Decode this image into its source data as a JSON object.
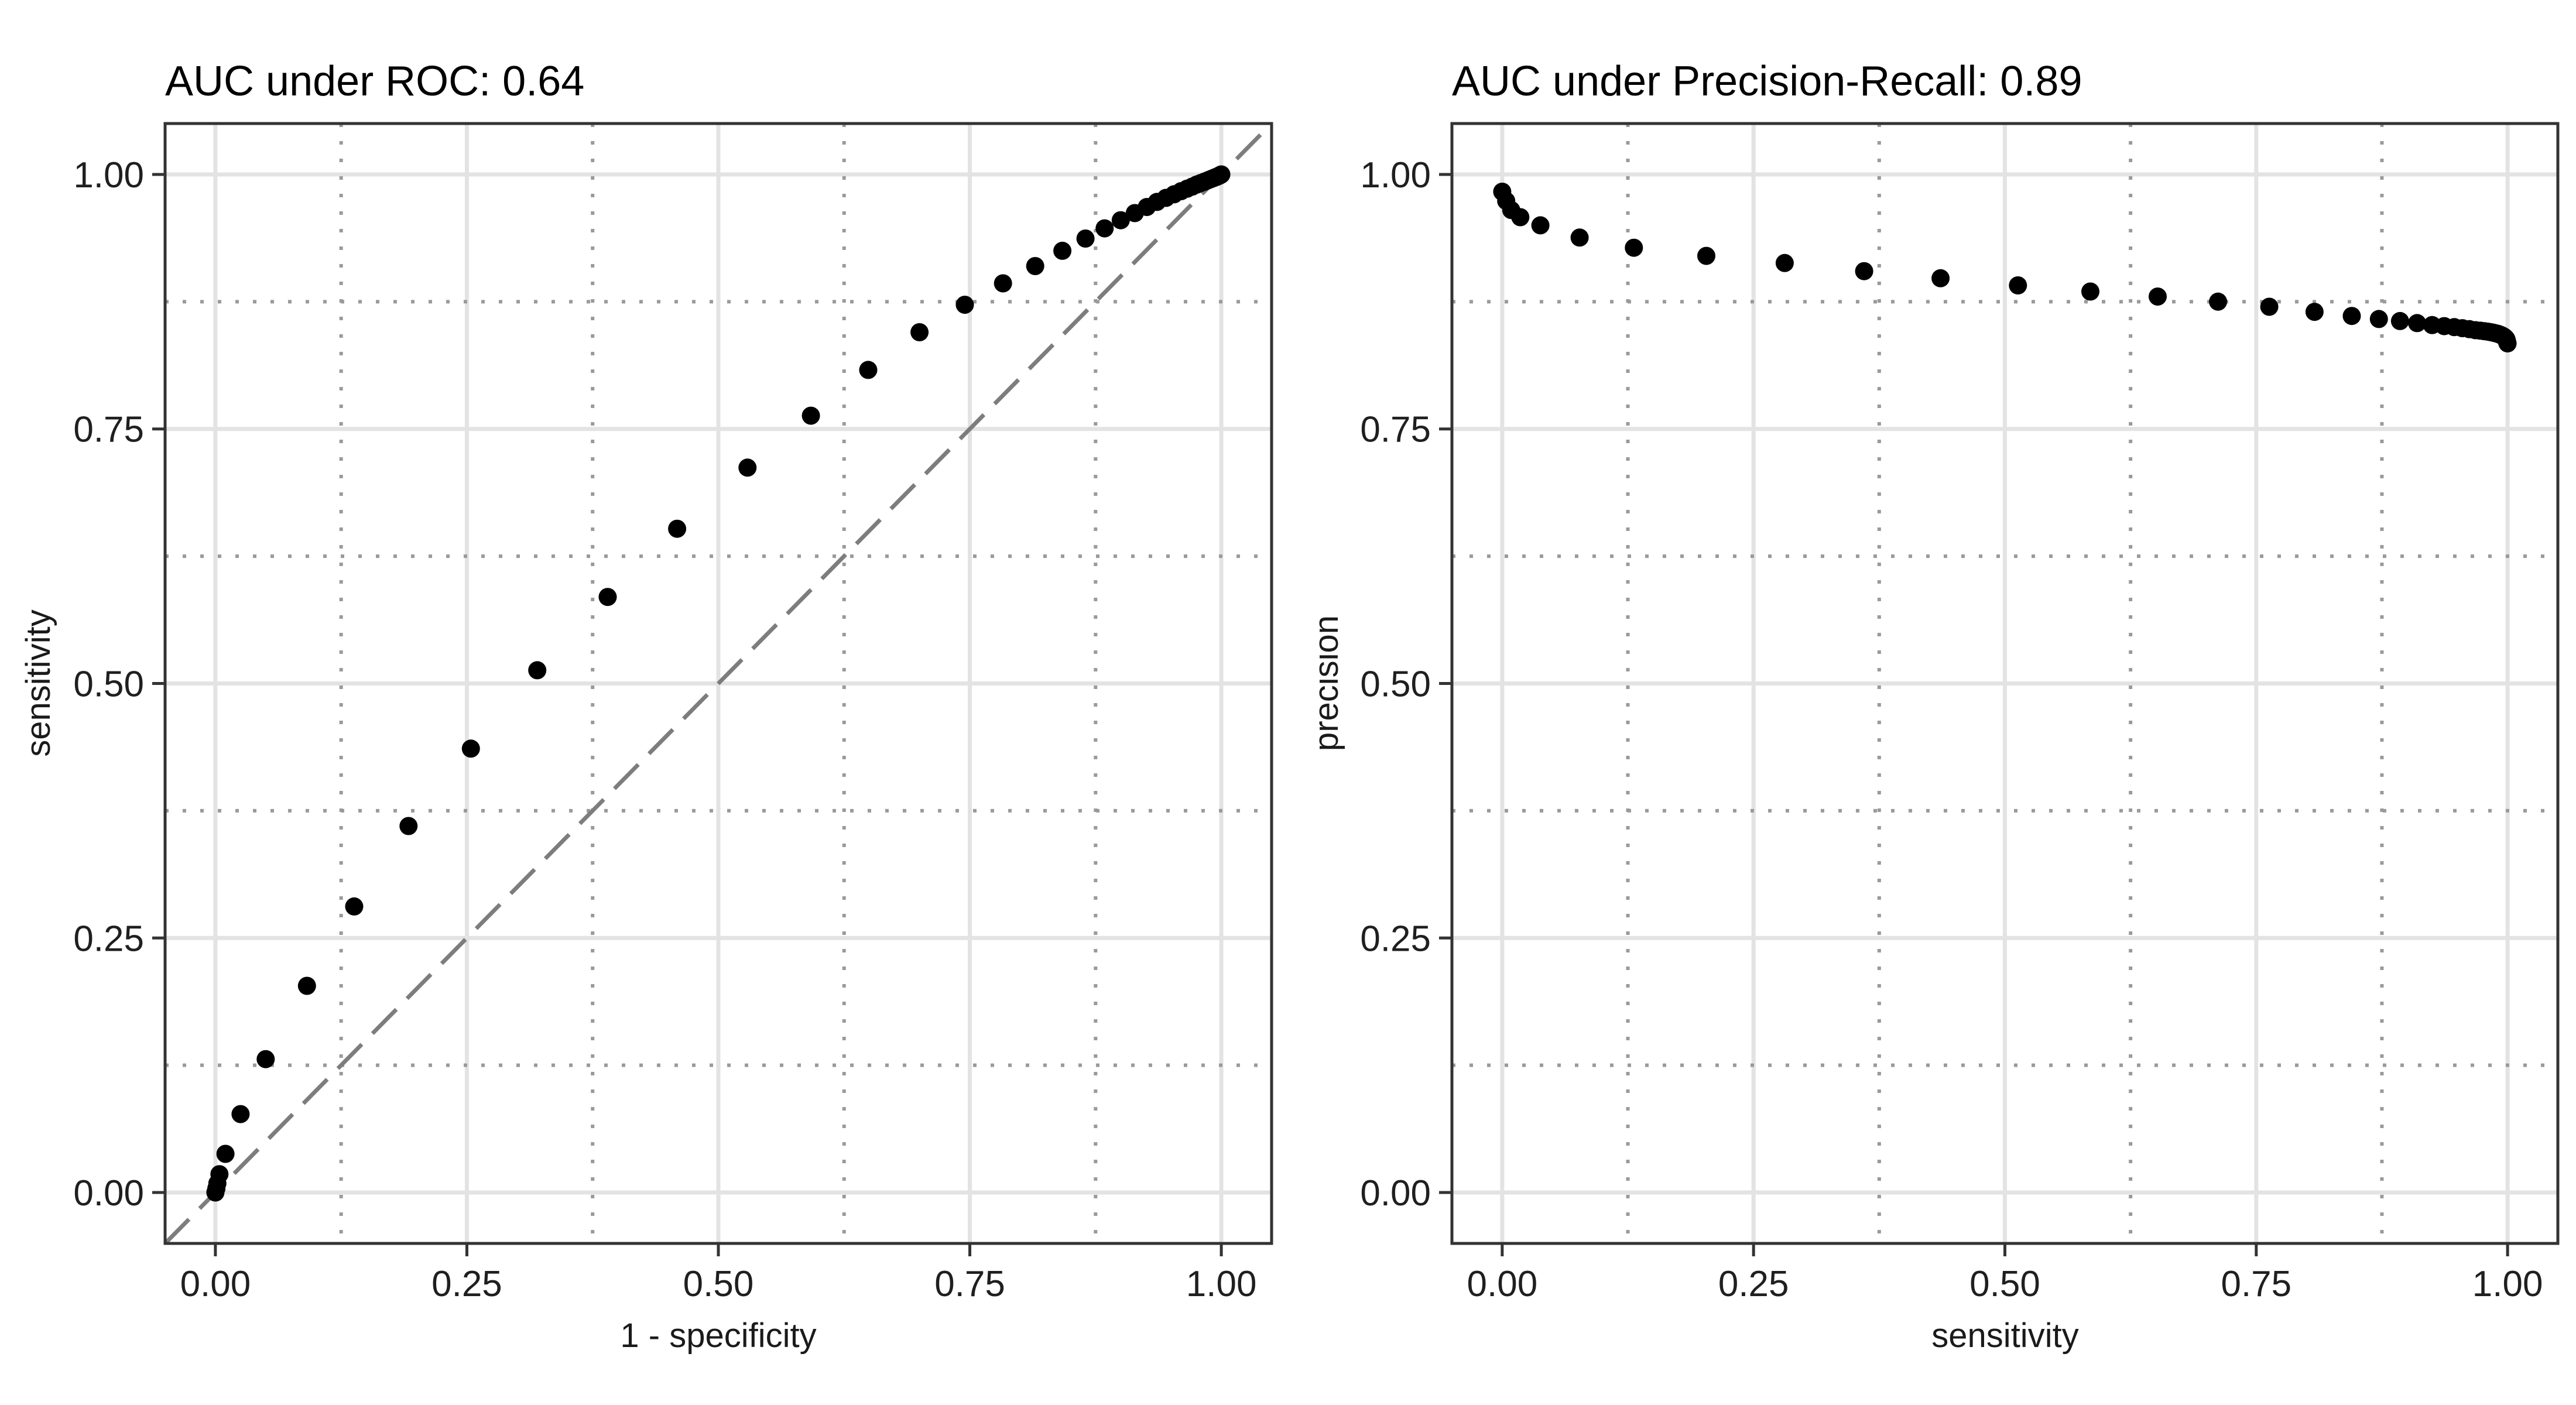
{
  "figure": {
    "background": "#ffffff",
    "panel_background": "#ffffff"
  },
  "style": {
    "major_grid_color": "#e3e3e3",
    "minor_grid_color": "#9a9a9a",
    "panel_border_color": "#333333",
    "tick_mark_color": "#333333",
    "point_color": "#000000",
    "reference_line_color": "#7d7d7d"
  },
  "chart_data": [
    {
      "type": "scatter",
      "id": "roc",
      "title": "AUC under ROC: 0.64",
      "xlabel": "1 - specificity",
      "ylabel": "sensitivity",
      "xlim": [
        0,
        1
      ],
      "ylim": [
        0,
        1
      ],
      "x_tick_values": [
        0,
        0.25,
        0.5,
        0.75,
        1.0
      ],
      "x_tick_labels": [
        "0.00",
        "0.25",
        "0.50",
        "0.75",
        "1.00"
      ],
      "y_tick_values": [
        0,
        0.25,
        0.5,
        0.75,
        1.0
      ],
      "y_tick_labels": [
        "0.00",
        "0.25",
        "0.50",
        "0.75",
        "1.00"
      ],
      "minor_tick_values": [
        0.125,
        0.375,
        0.625,
        0.875
      ],
      "grid": "major-solid, minor-dotted",
      "legend": "none",
      "reference_line": {
        "type": "diagonal",
        "from": [
          0,
          0
        ],
        "to": [
          1,
          1
        ],
        "style": "dashed"
      },
      "x": [
        0.0,
        0.001,
        0.002,
        0.004,
        0.01,
        0.025,
        0.05,
        0.091,
        0.138,
        0.192,
        0.254,
        0.32,
        0.39,
        0.459,
        0.529,
        0.592,
        0.649,
        0.7,
        0.745,
        0.783,
        0.815,
        0.842,
        0.865,
        0.884,
        0.9,
        0.914,
        0.926,
        0.936,
        0.945,
        0.953,
        0.96,
        0.966,
        0.971,
        0.9755,
        0.9795,
        0.983,
        0.986,
        0.9885,
        0.9905,
        0.9925,
        0.994,
        0.9955,
        0.9965,
        0.9975,
        0.998,
        0.9985,
        0.999,
        0.9995,
        1.0
      ],
      "y": [
        0.0,
        0.004,
        0.009,
        0.018,
        0.038,
        0.077,
        0.131,
        0.203,
        0.281,
        0.36,
        0.436,
        0.513,
        0.585,
        0.652,
        0.712,
        0.763,
        0.808,
        0.845,
        0.872,
        0.893,
        0.91,
        0.925,
        0.937,
        0.947,
        0.955,
        0.962,
        0.968,
        0.973,
        0.977,
        0.9805,
        0.9835,
        0.986,
        0.988,
        0.99,
        0.9915,
        0.9928,
        0.994,
        0.995,
        0.9958,
        0.9965,
        0.9972,
        0.9977,
        0.9982,
        0.9986,
        0.9989,
        0.9992,
        0.9994,
        0.9996,
        1.0
      ]
    },
    {
      "type": "scatter",
      "id": "precision-recall",
      "title": "AUC under Precision-Recall: 0.89",
      "xlabel": "sensitivity",
      "ylabel": "precision",
      "xlim": [
        0,
        1
      ],
      "ylim": [
        0,
        1
      ],
      "x_tick_values": [
        0,
        0.25,
        0.5,
        0.75,
        1.0
      ],
      "x_tick_labels": [
        "0.00",
        "0.25",
        "0.50",
        "0.75",
        "1.00"
      ],
      "y_tick_values": [
        0,
        0.25,
        0.5,
        0.75,
        1.0
      ],
      "y_tick_labels": [
        "0.00",
        "0.25",
        "0.50",
        "0.75",
        "1.00"
      ],
      "minor_tick_values": [
        0.125,
        0.375,
        0.625,
        0.875
      ],
      "grid": "major-solid, minor-dotted",
      "legend": "none",
      "reference_line": null,
      "x": [
        0.0,
        0.004,
        0.009,
        0.018,
        0.038,
        0.077,
        0.131,
        0.203,
        0.281,
        0.36,
        0.436,
        0.513,
        0.585,
        0.652,
        0.712,
        0.763,
        0.808,
        0.845,
        0.872,
        0.893,
        0.91,
        0.925,
        0.937,
        0.947,
        0.955,
        0.962,
        0.968,
        0.973,
        0.977,
        0.9805,
        0.9835,
        0.986,
        0.988,
        0.99,
        0.9915,
        0.9928,
        0.994,
        0.995,
        0.9958,
        0.9965,
        0.9972,
        0.9977,
        0.9982,
        0.9986,
        0.9989,
        0.9992,
        0.9994,
        0.9996,
        1.0
      ],
      "y": [
        0.983,
        0.974,
        0.965,
        0.958,
        0.95,
        0.938,
        0.928,
        0.92,
        0.913,
        0.905,
        0.898,
        0.891,
        0.885,
        0.88,
        0.875,
        0.87,
        0.865,
        0.861,
        0.858,
        0.856,
        0.854,
        0.852,
        0.851,
        0.85,
        0.849,
        0.848,
        0.847,
        0.8465,
        0.846,
        0.8455,
        0.845,
        0.8445,
        0.844,
        0.8435,
        0.843,
        0.8425,
        0.842,
        0.8415,
        0.841,
        0.8405,
        0.84,
        0.8395,
        0.839,
        0.8385,
        0.838,
        0.837,
        0.836,
        0.835,
        0.834
      ]
    }
  ]
}
